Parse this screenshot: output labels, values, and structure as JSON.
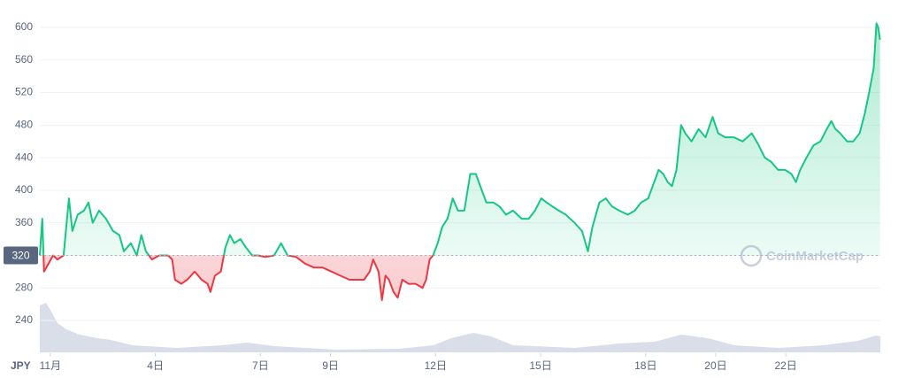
{
  "chart_data": {
    "type": "line",
    "currency": "JPY",
    "watermark": "CoinMarketCap",
    "baseline": 320,
    "up_color": "#16c784",
    "down_color": "#ea3943",
    "grid": true,
    "xlim": [
      0.7,
      24.7
    ],
    "ylim": [
      200,
      620
    ],
    "yticks": [
      240,
      280,
      320,
      360,
      400,
      440,
      480,
      520,
      560,
      600
    ],
    "xticks": [
      {
        "value": 1,
        "label": "11月"
      },
      {
        "value": 4,
        "label": "4日"
      },
      {
        "value": 7,
        "label": "7日"
      },
      {
        "value": 9,
        "label": "9日"
      },
      {
        "value": 12,
        "label": "12日"
      },
      {
        "value": 15,
        "label": "15日"
      },
      {
        "value": 18,
        "label": "18日"
      },
      {
        "value": 20,
        "label": "20日"
      },
      {
        "value": 22,
        "label": "22日"
      }
    ],
    "x": [
      0.7,
      0.77,
      0.82,
      0.95,
      1.08,
      1.2,
      1.38,
      1.53,
      1.63,
      1.78,
      1.96,
      2.09,
      2.21,
      2.39,
      2.59,
      2.79,
      2.97,
      3.1,
      3.3,
      3.47,
      3.6,
      3.73,
      3.9,
      4.11,
      4.36,
      4.48,
      4.56,
      4.74,
      4.91,
      5.12,
      5.32,
      5.49,
      5.57,
      5.7,
      5.87,
      6.0,
      6.13,
      6.25,
      6.43,
      6.58,
      6.76,
      6.93,
      7.14,
      7.39,
      7.59,
      7.77,
      8.02,
      8.27,
      8.53,
      8.78,
      9.03,
      9.28,
      9.54,
      9.79,
      9.96,
      10.12,
      10.22,
      10.37,
      10.47,
      10.57,
      10.67,
      10.8,
      10.92,
      11.05,
      11.23,
      11.43,
      11.63,
      11.73,
      11.83,
      11.93,
      12.06,
      12.19,
      12.34,
      12.49,
      12.64,
      12.82,
      12.99,
      13.15,
      13.32,
      13.45,
      13.65,
      13.83,
      14.01,
      14.21,
      14.46,
      14.66,
      14.84,
      15.02,
      15.17,
      15.34,
      15.52,
      15.72,
      15.97,
      16.18,
      16.35,
      16.48,
      16.68,
      16.86,
      17.04,
      17.24,
      17.49,
      17.69,
      17.87,
      18.07,
      18.2,
      18.37,
      18.5,
      18.63,
      18.75,
      18.88,
      19.01,
      19.13,
      19.31,
      19.51,
      19.71,
      19.91,
      20.07,
      20.27,
      20.52,
      20.77,
      21.03,
      21.23,
      21.4,
      21.58,
      21.78,
      21.98,
      22.16,
      22.29,
      22.41,
      22.59,
      22.79,
      22.99,
      23.17,
      23.3,
      23.42,
      23.55,
      23.75,
      23.93,
      24.11,
      24.26,
      24.38,
      24.51,
      24.59,
      24.64,
      24.69
    ],
    "values": [
      320,
      365,
      300,
      310,
      320,
      315,
      320,
      390,
      350,
      370,
      375,
      385,
      360,
      375,
      365,
      350,
      345,
      325,
      335,
      320,
      345,
      325,
      315,
      320,
      320,
      315,
      290,
      285,
      290,
      300,
      290,
      285,
      275,
      295,
      300,
      330,
      345,
      335,
      340,
      330,
      320,
      320,
      318,
      320,
      335,
      320,
      318,
      310,
      305,
      305,
      300,
      295,
      290,
      290,
      290,
      300,
      315,
      300,
      265,
      295,
      290,
      275,
      268,
      290,
      285,
      285,
      280,
      290,
      315,
      320,
      335,
      355,
      365,
      390,
      375,
      375,
      420,
      420,
      400,
      385,
      385,
      380,
      370,
      375,
      365,
      365,
      375,
      390,
      385,
      380,
      375,
      370,
      360,
      350,
      325,
      355,
      385,
      390,
      380,
      375,
      370,
      375,
      385,
      390,
      405,
      425,
      420,
      410,
      405,
      425,
      480,
      470,
      460,
      475,
      465,
      490,
      470,
      465,
      465,
      460,
      470,
      455,
      440,
      435,
      425,
      425,
      420,
      410,
      425,
      440,
      455,
      460,
      475,
      485,
      475,
      470,
      460,
      460,
      470,
      495,
      520,
      550,
      605,
      600,
      585
    ]
  }
}
